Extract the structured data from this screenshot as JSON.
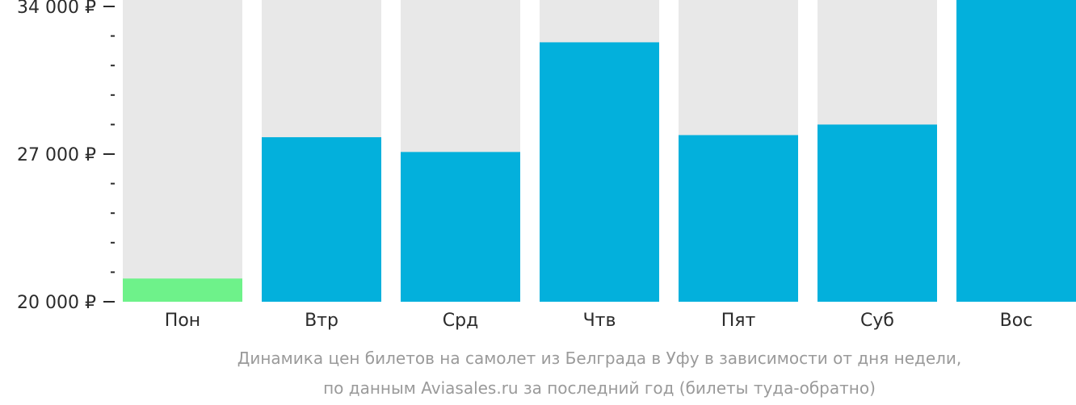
{
  "chart_data": {
    "type": "bar",
    "categories": [
      "Пон",
      "Втр",
      "Срд",
      "Чтв",
      "Пят",
      "Суб",
      "Вос"
    ],
    "values": [
      21100,
      27800,
      27100,
      32300,
      27900,
      28400,
      35000
    ],
    "ylim": [
      20000,
      34000
    ],
    "y_ticks": [
      {
        "value": 20000,
        "label": "20 000 ₽"
      },
      {
        "value": 27000,
        "label": "27 000 ₽"
      },
      {
        "value": 34000,
        "label": "34 000 ₽"
      }
    ],
    "y_minor_step": 1400,
    "grid": false,
    "legend": "none",
    "colors": {
      "bar": "#03b0dc",
      "bar_lowest": "#6ef28a",
      "background_column": "#e8e8e8",
      "axis_text": "#2b2b2b",
      "caption_text": "#9a9a9a"
    },
    "lowest_index": 0,
    "caption": [
      "Динамика цен билетов на самолет из Белграда в Уфу в зависимости от дня недели,",
      "по данным Aviasales.ru за последний год (билеты туда-обратно)"
    ]
  }
}
